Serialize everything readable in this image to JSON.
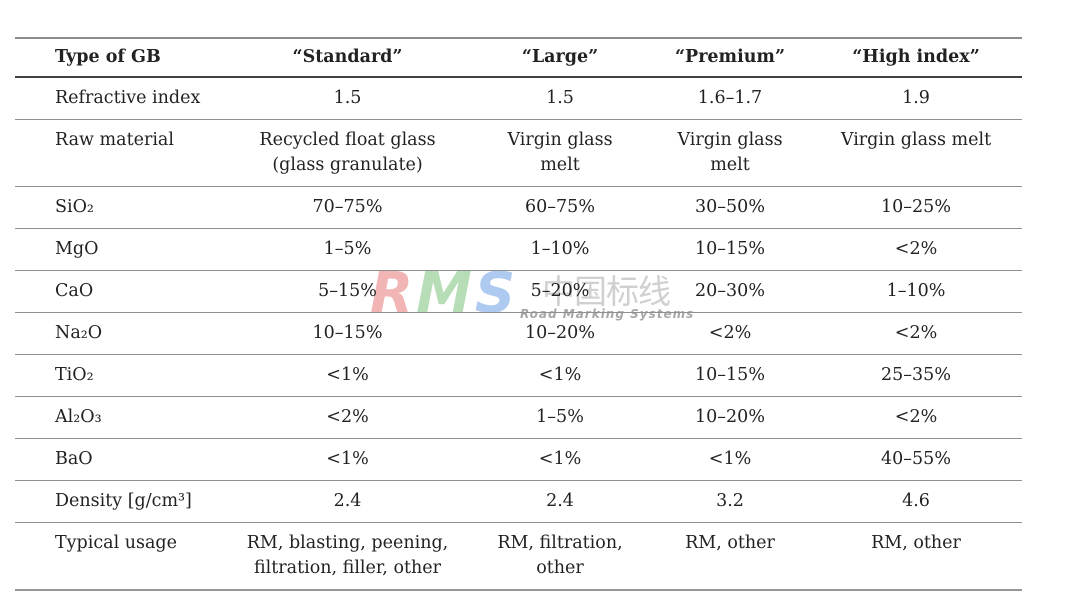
{
  "table": {
    "columns": [
      "Type of GB",
      "“Standard”",
      "“Large”",
      "“Premium”",
      "“High index”"
    ],
    "rows": [
      {
        "label": "Refractive index",
        "values": [
          "1.5",
          "1.5",
          "1.6–1.7",
          "1.9"
        ]
      },
      {
        "label": "Raw material",
        "values": [
          "Recycled float glass\n(glass granulate)",
          "Virgin glass\nmelt",
          "Virgin glass\nmelt",
          "Virgin glass melt"
        ]
      },
      {
        "label": "SiO₂",
        "values": [
          "70–75%",
          "60–75%",
          "30–50%",
          "10–25%"
        ]
      },
      {
        "label": "MgO",
        "values": [
          "1–5%",
          "1–10%",
          "10–15%",
          "<2%"
        ]
      },
      {
        "label": "CaO",
        "values": [
          "5–15%",
          "5–20%",
          "20–30%",
          "1–10%"
        ]
      },
      {
        "label": "Na₂O",
        "values": [
          "10–15%",
          "10–20%",
          "<2%",
          "<2%"
        ]
      },
      {
        "label": "TiO₂",
        "values": [
          "<1%",
          "<1%",
          "10–15%",
          "25–35%"
        ]
      },
      {
        "label": "Al₂O₃",
        "values": [
          "<2%",
          "1–5%",
          "10–20%",
          "<2%"
        ]
      },
      {
        "label": "BaO",
        "values": [
          "<1%",
          "<1%",
          "<1%",
          "40–55%"
        ]
      },
      {
        "label": "Density [g/cm³]",
        "values": [
          "2.4",
          "2.4",
          "3.2",
          "4.6"
        ]
      },
      {
        "label": "Typical usage",
        "values": [
          "RM, blasting, peening,\nfiltration, filler, other",
          "RM, filtration,\nother",
          "RM, other",
          "RM, other"
        ]
      }
    ]
  },
  "watermark": {
    "letters": [
      {
        "char": "R",
        "color": "rgba(225,90,90,0.45)"
      },
      {
        "char": "M",
        "color": "rgba(95,180,95,0.45)"
      },
      {
        "char": "S",
        "color": "rgba(95,150,225,0.5)"
      }
    ],
    "cn_text": "中国标线",
    "tagline": "Road Marking Systems"
  }
}
